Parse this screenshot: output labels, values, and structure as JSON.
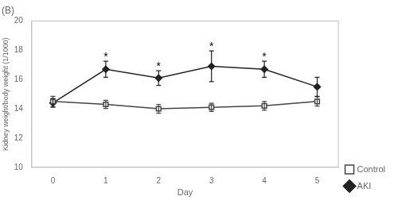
{
  "chart_data": {
    "type": "line",
    "title": "(B)",
    "x": [
      0,
      1,
      2,
      3,
      4,
      5
    ],
    "xlim": [
      -0.4,
      5.4
    ],
    "xticks": [
      0,
      1,
      2,
      3,
      4,
      5
    ],
    "ylim": [
      10,
      20
    ],
    "yticks": [
      10,
      12,
      14,
      16,
      18,
      20
    ],
    "xlabel": "Day",
    "ylabel": "Kidney weight/body weight (1/1000)",
    "grid": false,
    "legend": "lower right",
    "series": [
      {
        "name": "Control",
        "color": "#444444",
        "marker": "open_square",
        "line_style": "solid",
        "values": [
          14.5,
          14.3,
          14.0,
          14.1,
          14.2,
          14.5
        ],
        "errors": [
          0.35,
          0.28,
          0.3,
          0.28,
          0.3,
          0.32
        ]
      },
      {
        "name": "AKI",
        "color": "#222222",
        "marker": "diamond",
        "line_style": "solid",
        "values": [
          14.4,
          16.7,
          16.1,
          16.9,
          16.7,
          15.5
        ],
        "errors": [
          0.3,
          0.55,
          0.5,
          1.05,
          0.55,
          0.65
        ]
      }
    ],
    "annotations": [
      {
        "text": "*",
        "x": 1,
        "y": 17.35
      },
      {
        "text": "*",
        "x": 2,
        "y": 16.72
      },
      {
        "text": "*",
        "x": 3,
        "y": 18.05
      },
      {
        "text": "*",
        "x": 4,
        "y": 17.38
      }
    ]
  }
}
